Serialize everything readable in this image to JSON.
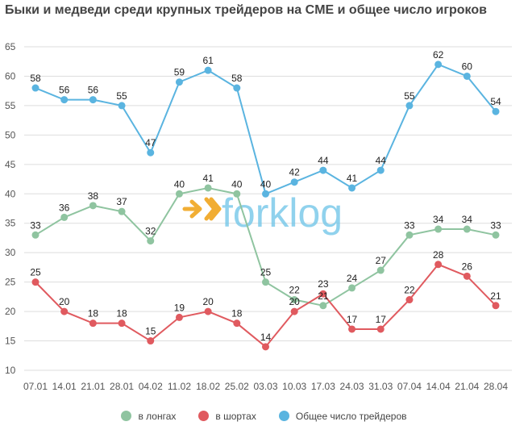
{
  "chart_data": {
    "type": "line",
    "title": "Быки и медведи среди крупных трейдеров на CME и общее число игроков",
    "categories": [
      "07.01",
      "14.01",
      "21.01",
      "28.01",
      "04.02",
      "11.02",
      "18.02",
      "25.02",
      "03.03",
      "10.03",
      "17.03",
      "24.03",
      "31.03",
      "07.04",
      "14.04",
      "21.04",
      "28.04"
    ],
    "series": [
      {
        "name": "в лонгах",
        "color": "#8fc4a0",
        "values": [
          33,
          36,
          38,
          37,
          32,
          40,
          41,
          40,
          25,
          22,
          21,
          24,
          27,
          33,
          34,
          34,
          33
        ]
      },
      {
        "name": "в шортах",
        "color": "#e05a5f",
        "values": [
          25,
          20,
          18,
          18,
          15,
          19,
          20,
          18,
          14,
          20,
          23,
          17,
          17,
          22,
          28,
          26,
          21
        ]
      },
      {
        "name": "Общее число трейдеров",
        "color": "#5ab4e0",
        "values": [
          58,
          56,
          56,
          55,
          47,
          59,
          61,
          58,
          40,
          42,
          44,
          41,
          44,
          55,
          62,
          60,
          54
        ]
      }
    ],
    "yticks": [
      10,
      15,
      20,
      25,
      30,
      35,
      40,
      45,
      50,
      55,
      60,
      65
    ],
    "ylim": [
      10,
      65
    ],
    "grid": true,
    "legend": "bottom-center",
    "watermark": "forklog"
  }
}
